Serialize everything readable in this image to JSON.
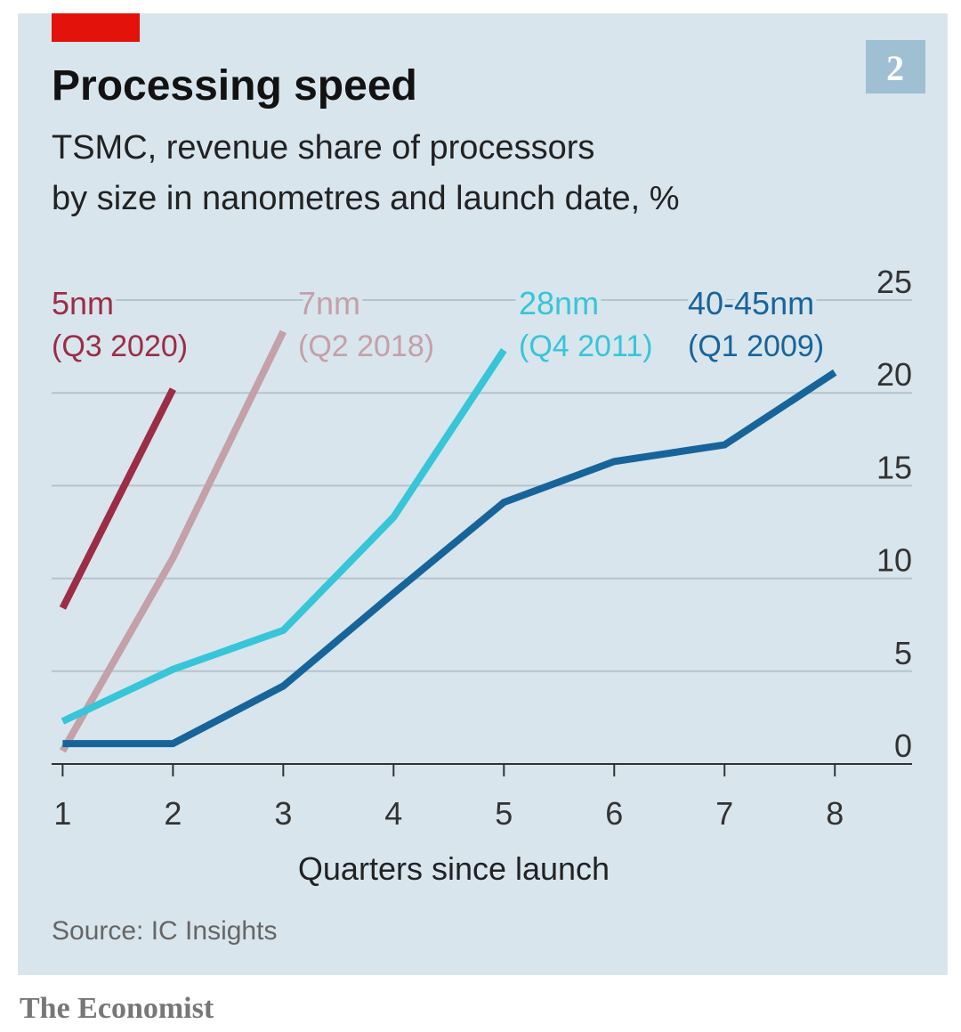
{
  "chart_data": {
    "type": "line",
    "title": "Processing speed",
    "subtitle": [
      "TSMC, revenue share of processors",
      "by size in nanometres and launch date, %"
    ],
    "badge": "2",
    "x": [
      1,
      2,
      3,
      4,
      5,
      6,
      7,
      8
    ],
    "xlim": [
      0.9,
      8.7
    ],
    "xticks": [
      1,
      2,
      3,
      4,
      5,
      6,
      7,
      8
    ],
    "ylim": [
      0,
      25
    ],
    "yticks": [
      0,
      5,
      10,
      15,
      20,
      25
    ],
    "xlabel": "Quarters since launch",
    "grid": true,
    "series": [
      {
        "name": "5nm",
        "launch": "(Q3 2020)",
        "color": "#9b2d45",
        "values": [
          8.4,
          20.2,
          null,
          null,
          null,
          null,
          null,
          null
        ]
      },
      {
        "name": "7nm",
        "launch": "(Q2 2018)",
        "color": "#c4a0a8",
        "values": [
          0.7,
          11.1,
          23.3,
          null,
          null,
          null,
          null,
          null
        ]
      },
      {
        "name": "28nm",
        "launch": "(Q4 2011)",
        "color": "#37c5d8",
        "values": [
          2.3,
          5.1,
          7.2,
          13.3,
          22.3,
          null,
          null,
          null
        ]
      },
      {
        "name": "40-45nm",
        "launch": "(Q1 2009)",
        "color": "#17649b",
        "values": [
          1.1,
          1.1,
          4.2,
          9.2,
          14.1,
          16.3,
          17.2,
          21.1
        ]
      }
    ],
    "source": "Source: IC Insights",
    "publisher": "The Economist"
  }
}
